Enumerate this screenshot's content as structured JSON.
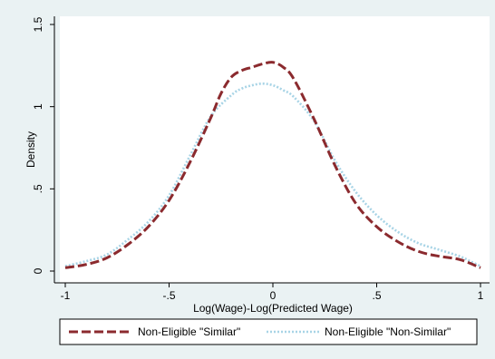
{
  "chart_data": {
    "type": "line",
    "title": "",
    "xlabel": "Log(Wage)-Log(Predicted Wage)",
    "ylabel": "Density",
    "xlim": [
      -1,
      1
    ],
    "ylim": [
      0,
      1.5
    ],
    "xticks": [
      -1,
      -0.5,
      0,
      0.5,
      1
    ],
    "xtick_labels": [
      "-1",
      "-.5",
      "0",
      ".5",
      "1"
    ],
    "yticks": [
      0,
      0.5,
      1,
      1.5
    ],
    "ytick_labels": [
      "0",
      ".5",
      "1",
      "1.5"
    ],
    "grid": false,
    "legend_position": "bottom",
    "series": [
      {
        "name": "Non-Eligible \"Similar\"",
        "color": "#8b2a2e",
        "style": "dashed",
        "x": [
          -1,
          -0.9,
          -0.8,
          -0.7,
          -0.6,
          -0.5,
          -0.4,
          -0.3,
          -0.25,
          -0.2,
          -0.15,
          -0.1,
          -0.05,
          0,
          0.05,
          0.1,
          0.2,
          0.3,
          0.4,
          0.5,
          0.6,
          0.7,
          0.8,
          0.9,
          1
        ],
        "y": [
          0.02,
          0.04,
          0.08,
          0.16,
          0.27,
          0.43,
          0.66,
          0.93,
          1.08,
          1.18,
          1.22,
          1.24,
          1.26,
          1.27,
          1.24,
          1.17,
          0.92,
          0.64,
          0.41,
          0.27,
          0.18,
          0.12,
          0.09,
          0.07,
          0.02
        ]
      },
      {
        "name": "Non-Eligible \"Non-Similar\"",
        "color": "#a8d4e6",
        "style": "dotted",
        "x": [
          -1,
          -0.9,
          -0.8,
          -0.7,
          -0.6,
          -0.5,
          -0.4,
          -0.3,
          -0.2,
          -0.15,
          -0.1,
          -0.05,
          0,
          0.05,
          0.1,
          0.2,
          0.3,
          0.4,
          0.5,
          0.6,
          0.7,
          0.8,
          0.9,
          0.95,
          1
        ],
        "y": [
          0.03,
          0.06,
          0.1,
          0.19,
          0.3,
          0.46,
          0.7,
          0.94,
          1.07,
          1.11,
          1.13,
          1.14,
          1.13,
          1.1,
          1.06,
          0.91,
          0.67,
          0.48,
          0.34,
          0.24,
          0.17,
          0.13,
          0.09,
          0.06,
          0.03
        ]
      }
    ]
  }
}
